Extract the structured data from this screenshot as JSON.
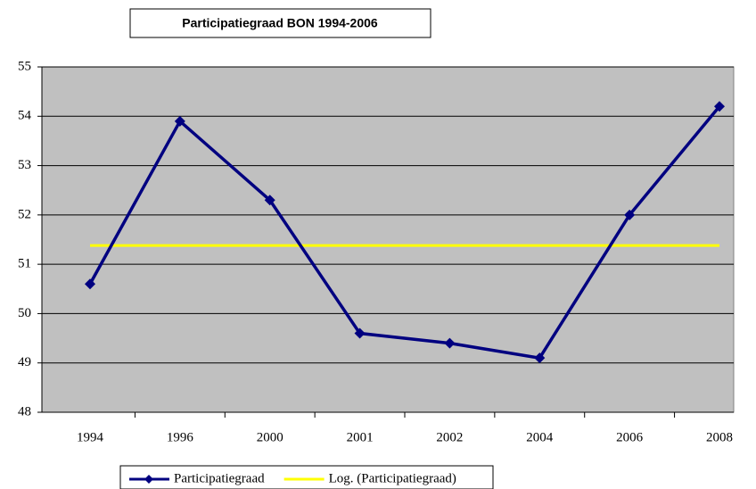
{
  "chart_data": {
    "type": "line",
    "title": "Participatiegraad BON 1994-2006",
    "categories": [
      "1994",
      "1996",
      "2000",
      "2001",
      "2002",
      "2004",
      "2006",
      "2008"
    ],
    "series": [
      {
        "name": "Participatiegraad",
        "color": "#000080",
        "values": [
          50.6,
          53.9,
          52.3,
          49.6,
          49.4,
          49.1,
          52.0,
          54.2
        ],
        "marker": "diamond"
      },
      {
        "name": "Log. (Participatiegraad)",
        "color": "#ffff00",
        "values": [
          51.38,
          51.38,
          51.38,
          51.38,
          51.38,
          51.38,
          51.38,
          51.38
        ]
      }
    ],
    "ylim": [
      48,
      55
    ],
    "yticks": [
      48,
      49,
      50,
      51,
      52,
      53,
      54,
      55
    ],
    "grid": true,
    "legend": "bottom"
  }
}
